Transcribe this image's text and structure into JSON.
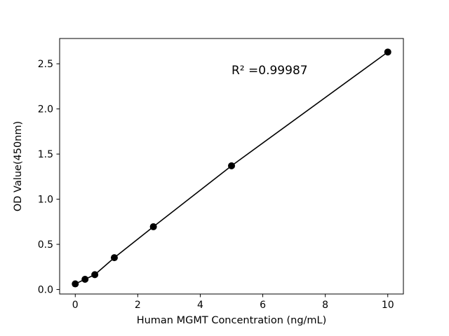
{
  "chart_data": {
    "type": "scatter",
    "title": "",
    "xlabel": "Human MGMT Concentration (ng/mL)",
    "ylabel": "OD Value(450nm)",
    "annotation": "R² =0.99987",
    "x": [
      0,
      0.3125,
      0.625,
      1.25,
      2.5,
      5,
      10
    ],
    "y": [
      0.062,
      0.113,
      0.164,
      0.352,
      0.695,
      1.37,
      2.63
    ],
    "fit_line": {
      "x": [
        0,
        0.3125,
        0.625,
        1.25,
        2.5,
        5,
        10
      ],
      "y": [
        0.062,
        0.113,
        0.164,
        0.352,
        0.695,
        1.37,
        2.63
      ]
    },
    "xlim": [
      -0.5,
      10.5
    ],
    "ylim": [
      -0.05,
      2.78
    ],
    "xticks": [
      0,
      2,
      4,
      6,
      8,
      10
    ],
    "xtick_labels": [
      "0",
      "2",
      "4",
      "6",
      "8",
      "10"
    ],
    "yticks": [
      0.0,
      0.5,
      1.0,
      1.5,
      2.0,
      2.5
    ],
    "ytick_labels": [
      "0.0",
      "0.5",
      "1.0",
      "1.5",
      "2.0",
      "2.5"
    ],
    "grid": false,
    "legend": null,
    "marker_color": "#000000",
    "line_color": "#000000",
    "background_color": "#ffffff"
  }
}
